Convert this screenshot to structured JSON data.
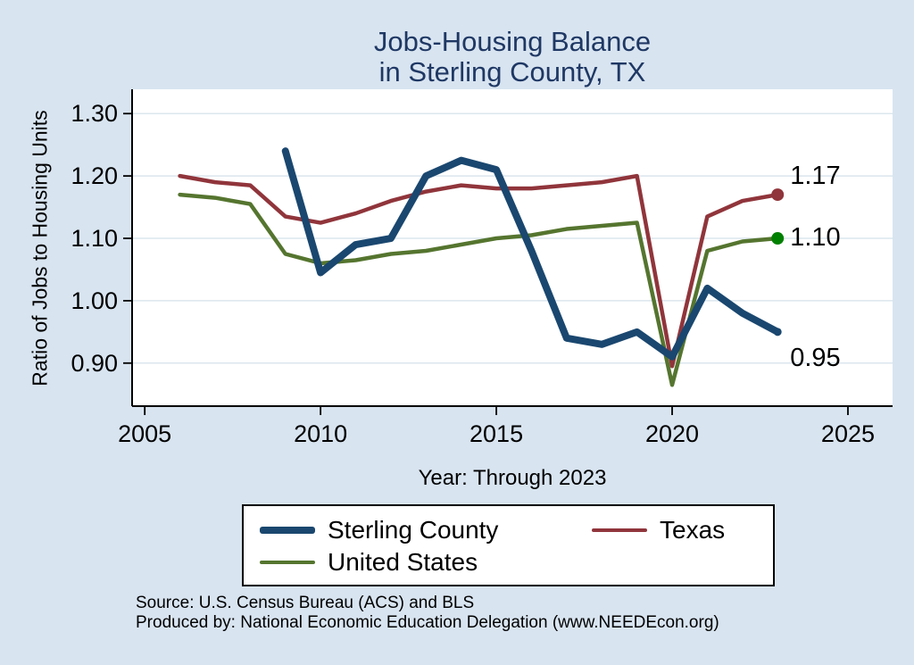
{
  "title": {
    "line1": "Jobs-Housing Balance",
    "line2": "in Sterling County, TX"
  },
  "source": {
    "line1": "Source: U.S. Census Bureau (ACS) and BLS",
    "line2": "Produced by: National Economic Education Delegation (www.NEEDEcon.org)"
  },
  "colors": {
    "background": "#d8e4f0",
    "plot_background": "#ffffff",
    "title": "#1f3864",
    "grid": "#dce6ee",
    "axis": "#000000",
    "sterling_county": "#1a476f",
    "texas": "#90353b",
    "united_states": "#55752f",
    "us_end_marker": "#008000"
  },
  "chart_data": {
    "type": "line",
    "title": "Jobs-Housing Balance in Sterling County, TX",
    "xlabel": "Year: Through 2023",
    "ylabel": "Ratio of Jobs to Housing Units",
    "xlim": [
      2004.64,
      2026.27
    ],
    "ylim": [
      0.831,
      1.339
    ],
    "xticks": [
      2005,
      2010,
      2015,
      2020,
      2025
    ],
    "yticks": [
      0.9,
      1.0,
      1.1,
      1.2,
      1.3
    ],
    "ytick_labels": [
      "0.90",
      "1.00",
      "1.10",
      "1.20",
      "1.30"
    ],
    "grid": "horizontal",
    "legend_position": "bottom",
    "series": [
      {
        "name": "Sterling County",
        "color": "#1a476f",
        "line_width": 8,
        "marker_color": "#1a476f",
        "marker_radius": 4.5,
        "end_label": "0.95",
        "label_dy": 30,
        "x": [
          2009,
          2010,
          2011,
          2012,
          2013,
          2014,
          2015,
          2016,
          2017,
          2018,
          2019,
          2020,
          2021,
          2022,
          2023
        ],
        "values": [
          1.24,
          1.045,
          1.09,
          1.1,
          1.2,
          1.225,
          1.21,
          1.08,
          0.94,
          0.93,
          0.95,
          0.91,
          1.02,
          0.98,
          0.95
        ]
      },
      {
        "name": "Texas",
        "color": "#90353b",
        "line_width": 4.5,
        "marker_color": "#90353b",
        "marker_radius": 7,
        "end_label": "1.17",
        "label_dy": -20,
        "x": [
          2006,
          2007,
          2008,
          2009,
          2010,
          2011,
          2012,
          2013,
          2014,
          2015,
          2016,
          2017,
          2018,
          2019,
          2020,
          2021,
          2022,
          2023
        ],
        "values": [
          1.2,
          1.19,
          1.185,
          1.135,
          1.125,
          1.14,
          1.16,
          1.175,
          1.185,
          1.18,
          1.18,
          1.185,
          1.19,
          1.2,
          0.895,
          1.135,
          1.16,
          1.17
        ]
      },
      {
        "name": "United States",
        "color": "#55752f",
        "line_width": 4.5,
        "marker_color": "#008000",
        "marker_radius": 7,
        "end_label": "1.10",
        "label_dy": 0,
        "x": [
          2006,
          2007,
          2008,
          2009,
          2010,
          2011,
          2012,
          2013,
          2014,
          2015,
          2016,
          2017,
          2018,
          2019,
          2020,
          2021,
          2022,
          2023
        ],
        "values": [
          1.17,
          1.165,
          1.155,
          1.075,
          1.06,
          1.065,
          1.075,
          1.08,
          1.09,
          1.1,
          1.105,
          1.115,
          1.12,
          1.125,
          0.865,
          1.08,
          1.095,
          1.1
        ]
      }
    ]
  }
}
